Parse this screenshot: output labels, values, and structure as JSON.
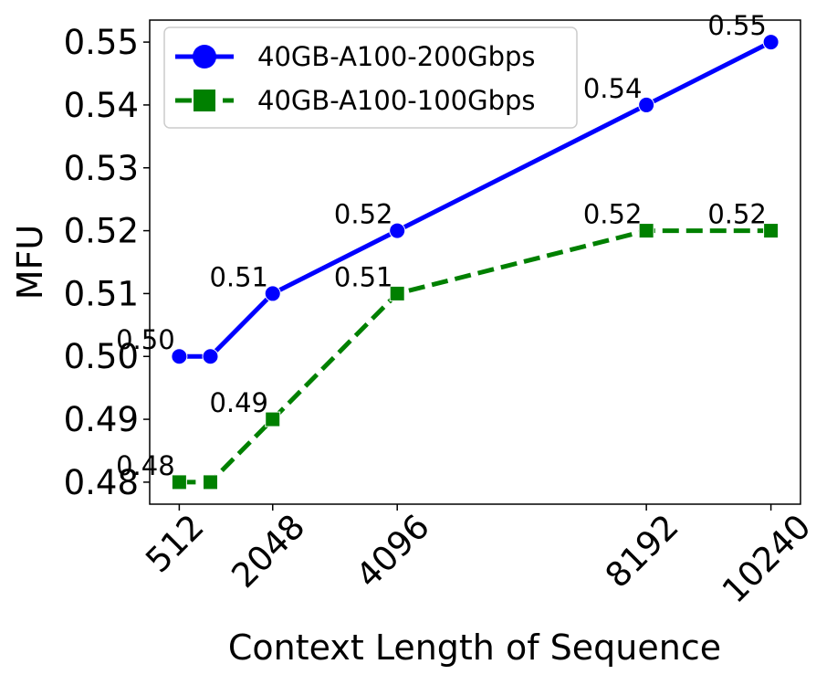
{
  "chart_data": {
    "type": "line",
    "x_label": "Context Length of Sequence",
    "y_label": "MFU",
    "x": [
      512,
      1024,
      2048,
      4096,
      8192,
      10240
    ],
    "series": [
      {
        "name": "40GB-A100-200Gbps",
        "color": "#0000ff",
        "marker": "circle",
        "dashed": false,
        "values": [
          0.5,
          0.5,
          0.51,
          0.52,
          0.54,
          0.55
        ],
        "value_labels": [
          "0.50",
          null,
          "0.51",
          "0.52",
          "0.54",
          "0.55"
        ]
      },
      {
        "name": "40GB-A100-100Gbps",
        "color": "#008000",
        "marker": "square",
        "dashed": true,
        "values": [
          0.48,
          0.48,
          0.49,
          0.51,
          0.52,
          0.52
        ],
        "value_labels": [
          "0.48",
          null,
          "0.49",
          "0.51",
          "0.52",
          "0.52"
        ]
      }
    ],
    "xlim": [
      26,
      10726
    ],
    "ylim": [
      0.4765,
      0.5535
    ],
    "xticks": [
      512,
      2048,
      4096,
      8192,
      10240
    ],
    "yticks": [
      0.48,
      0.49,
      {
        "value": 0.5,
        "label": "0.50"
      },
      0.51,
      0.52,
      0.53,
      0.54,
      0.55
    ],
    "legend": "upper left",
    "grid": false
  }
}
